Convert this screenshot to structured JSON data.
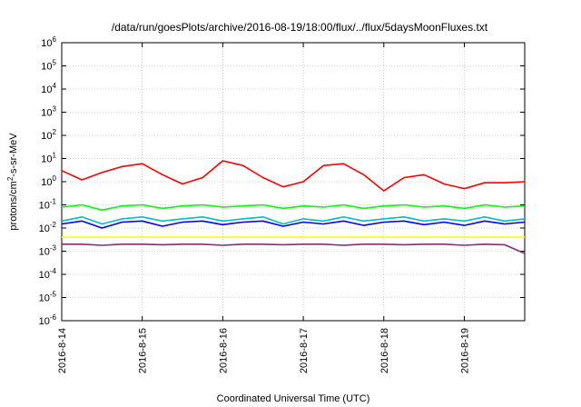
{
  "chart_data": {
    "type": "line",
    "title": "/data/run/goesPlots/archive/2016-08-19/18:00/flux/../flux/5daysMoonFluxes.txt",
    "xlabel": "Coordinated Universal Time (UTC)",
    "ylabel": "protons/cm²-s-sr-MeV",
    "ylabel_parts": {
      "pre": "protons/cm",
      "sup": "2",
      "post": "-s-sr-MeV"
    },
    "yscale": "log",
    "ylim": [
      1e-06,
      1000000.0
    ],
    "y_tick_labels": [
      {
        "base": "10",
        "exp": "-6"
      },
      {
        "base": "10",
        "exp": "-5"
      },
      {
        "base": "10",
        "exp": "-4"
      },
      {
        "base": "10",
        "exp": "-3"
      },
      {
        "base": "10",
        "exp": "-2"
      },
      {
        "base": "10",
        "exp": "-1"
      },
      {
        "base": "10",
        "exp": "0"
      },
      {
        "base": "10",
        "exp": "1"
      },
      {
        "base": "10",
        "exp": "2"
      },
      {
        "base": "10",
        "exp": "3"
      },
      {
        "base": "10",
        "exp": "4"
      },
      {
        "base": "10",
        "exp": "5"
      },
      {
        "base": "10",
        "exp": "6"
      }
    ],
    "x_tick_labels": [
      "2016-8-14",
      "2016-8-15",
      "2016-8-16",
      "2016-8-17",
      "2016-8-18",
      "2016-8-19"
    ],
    "xlim": [
      "2016-08-14 00:00",
      "2016-08-19 18:00"
    ],
    "grid": true,
    "series": [
      {
        "color": "#ff0000",
        "x": [
          "2016-08-14 00:00",
          "2016-08-14 06:00",
          "2016-08-14 12:00",
          "2016-08-14 18:00",
          "2016-08-15 00:00",
          "2016-08-15 06:00",
          "2016-08-15 12:00",
          "2016-08-15 18:00",
          "2016-08-16 00:00",
          "2016-08-16 06:00",
          "2016-08-16 12:00",
          "2016-08-16 18:00",
          "2016-08-17 00:00",
          "2016-08-17 06:00",
          "2016-08-17 12:00",
          "2016-08-17 18:00",
          "2016-08-18 00:00",
          "2016-08-18 06:00",
          "2016-08-18 12:00",
          "2016-08-18 18:00",
          "2016-08-19 00:00",
          "2016-08-19 06:00",
          "2016-08-19 12:00",
          "2016-08-19 18:00"
        ],
        "values": [
          3,
          1.2,
          2.5,
          4.5,
          6,
          2,
          0.8,
          1.5,
          8,
          5,
          1.5,
          0.6,
          1,
          5,
          6,
          2,
          0.4,
          1.5,
          2,
          0.8,
          0.5,
          0.9,
          0.9,
          1
        ]
      },
      {
        "color": "#00ff00",
        "x": [
          "2016-08-14 00:00",
          "2016-08-14 06:00",
          "2016-08-14 12:00",
          "2016-08-14 18:00",
          "2016-08-15 00:00",
          "2016-08-15 06:00",
          "2016-08-15 12:00",
          "2016-08-15 18:00",
          "2016-08-16 00:00",
          "2016-08-16 06:00",
          "2016-08-16 12:00",
          "2016-08-16 18:00",
          "2016-08-17 00:00",
          "2016-08-17 06:00",
          "2016-08-17 12:00",
          "2016-08-17 18:00",
          "2016-08-18 00:00",
          "2016-08-18 06:00",
          "2016-08-18 12:00",
          "2016-08-18 18:00",
          "2016-08-19 00:00",
          "2016-08-19 06:00",
          "2016-08-19 12:00",
          "2016-08-19 18:00"
        ],
        "values": [
          0.08,
          0.1,
          0.06,
          0.09,
          0.1,
          0.07,
          0.09,
          0.1,
          0.08,
          0.09,
          0.1,
          0.07,
          0.09,
          0.08,
          0.1,
          0.07,
          0.09,
          0.1,
          0.08,
          0.09,
          0.07,
          0.1,
          0.08,
          0.09
        ]
      },
      {
        "color": "#00c0c0",
        "x": [
          "2016-08-14 00:00",
          "2016-08-14 06:00",
          "2016-08-14 12:00",
          "2016-08-14 18:00",
          "2016-08-15 00:00",
          "2016-08-15 06:00",
          "2016-08-15 12:00",
          "2016-08-15 18:00",
          "2016-08-16 00:00",
          "2016-08-16 06:00",
          "2016-08-16 12:00",
          "2016-08-16 18:00",
          "2016-08-17 00:00",
          "2016-08-17 06:00",
          "2016-08-17 12:00",
          "2016-08-17 18:00",
          "2016-08-18 00:00",
          "2016-08-18 06:00",
          "2016-08-18 12:00",
          "2016-08-18 18:00",
          "2016-08-19 00:00",
          "2016-08-19 06:00",
          "2016-08-19 12:00",
          "2016-08-19 18:00"
        ],
        "values": [
          0.02,
          0.03,
          0.015,
          0.025,
          0.03,
          0.02,
          0.025,
          0.03,
          0.02,
          0.025,
          0.03,
          0.015,
          0.025,
          0.02,
          0.03,
          0.02,
          0.025,
          0.03,
          0.02,
          0.025,
          0.02,
          0.03,
          0.02,
          0.025
        ]
      },
      {
        "color": "#0000ff",
        "x": [
          "2016-08-14 00:00",
          "2016-08-14 06:00",
          "2016-08-14 12:00",
          "2016-08-14 18:00",
          "2016-08-15 00:00",
          "2016-08-15 06:00",
          "2016-08-15 12:00",
          "2016-08-15 18:00",
          "2016-08-16 00:00",
          "2016-08-16 06:00",
          "2016-08-16 12:00",
          "2016-08-16 18:00",
          "2016-08-17 00:00",
          "2016-08-17 06:00",
          "2016-08-17 12:00",
          "2016-08-17 18:00",
          "2016-08-18 00:00",
          "2016-08-18 06:00",
          "2016-08-18 12:00",
          "2016-08-18 18:00",
          "2016-08-19 00:00",
          "2016-08-19 06:00",
          "2016-08-19 12:00",
          "2016-08-19 18:00"
        ],
        "values": [
          0.015,
          0.02,
          0.01,
          0.018,
          0.02,
          0.012,
          0.018,
          0.02,
          0.014,
          0.018,
          0.02,
          0.012,
          0.018,
          0.015,
          0.02,
          0.013,
          0.018,
          0.02,
          0.014,
          0.018,
          0.013,
          0.02,
          0.015,
          0.018
        ]
      },
      {
        "color": "#ffff00",
        "x": [
          "2016-08-14 00:00",
          "2016-08-14 06:00",
          "2016-08-14 12:00",
          "2016-08-14 18:00",
          "2016-08-15 00:00",
          "2016-08-15 06:00",
          "2016-08-15 12:00",
          "2016-08-15 18:00",
          "2016-08-16 00:00",
          "2016-08-16 06:00",
          "2016-08-16 12:00",
          "2016-08-16 18:00",
          "2016-08-17 00:00",
          "2016-08-17 06:00",
          "2016-08-17 12:00",
          "2016-08-17 18:00",
          "2016-08-18 00:00",
          "2016-08-18 06:00",
          "2016-08-18 12:00",
          "2016-08-18 18:00",
          "2016-08-19 00:00",
          "2016-08-19 06:00",
          "2016-08-19 12:00",
          "2016-08-19 18:00"
        ],
        "values": [
          0.004,
          0.004,
          0.004,
          0.004,
          0.004,
          0.004,
          0.004,
          0.004,
          0.004,
          0.004,
          0.004,
          0.004,
          0.004,
          0.004,
          0.004,
          0.004,
          0.004,
          0.004,
          0.004,
          0.004,
          0.004,
          0.004,
          0.004,
          0.004
        ]
      },
      {
        "color": "#8b2a6e",
        "x": [
          "2016-08-14 00:00",
          "2016-08-14 06:00",
          "2016-08-14 12:00",
          "2016-08-14 18:00",
          "2016-08-15 00:00",
          "2016-08-15 06:00",
          "2016-08-15 12:00",
          "2016-08-15 18:00",
          "2016-08-16 00:00",
          "2016-08-16 06:00",
          "2016-08-16 12:00",
          "2016-08-16 18:00",
          "2016-08-17 00:00",
          "2016-08-17 06:00",
          "2016-08-17 12:00",
          "2016-08-17 18:00",
          "2016-08-18 00:00",
          "2016-08-18 06:00",
          "2016-08-18 12:00",
          "2016-08-18 18:00",
          "2016-08-19 00:00",
          "2016-08-19 06:00",
          "2016-08-19 12:00",
          "2016-08-19 18:00"
        ],
        "values": [
          0.002,
          0.002,
          0.0018,
          0.002,
          0.002,
          0.0019,
          0.002,
          0.002,
          0.0018,
          0.002,
          0.002,
          0.0019,
          0.002,
          0.002,
          0.0018,
          0.002,
          0.002,
          0.0019,
          0.002,
          0.002,
          0.0018,
          0.002,
          0.0019,
          0.0008
        ]
      }
    ]
  }
}
